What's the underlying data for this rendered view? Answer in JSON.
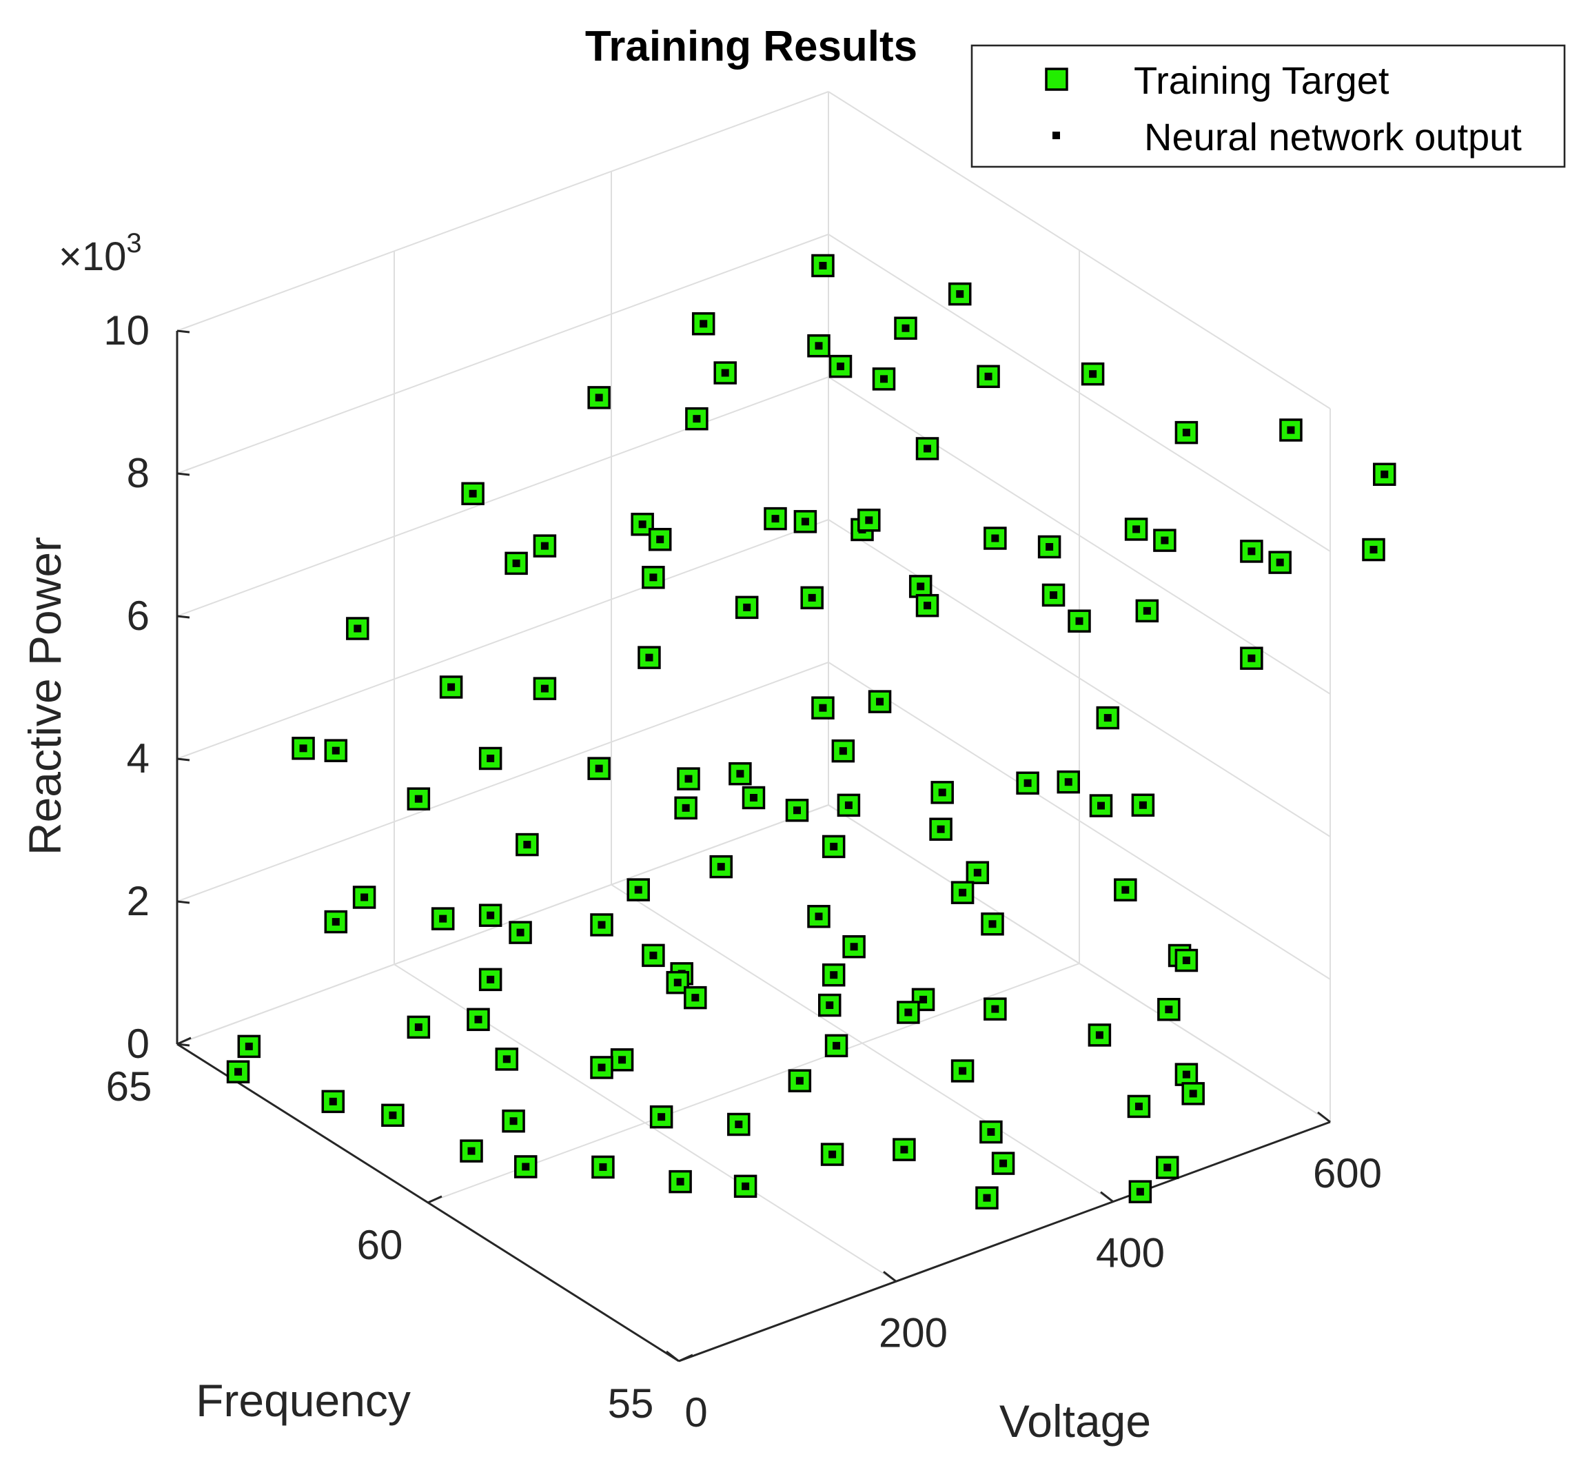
{
  "chart_data": {
    "type": "scatter3d",
    "title": "Training Results",
    "xlabel": "Voltage",
    "ylabel": "Frequency",
    "zlabel": "Reactive Power",
    "z_exponent_base": "×10",
    "z_exponent_power": "3",
    "xlim": [
      0,
      600
    ],
    "ylim": [
      55,
      65
    ],
    "zlim": [
      0,
      10
    ],
    "xticks": [
      "0",
      "200",
      "400",
      "600"
    ],
    "yticks": [
      "55",
      "60",
      "65"
    ],
    "zticks": [
      "0",
      "2",
      "4",
      "6",
      "8",
      "10"
    ],
    "grid": true,
    "legend_position": "top-right",
    "colors": {
      "target_fill": "#22ee00",
      "target_edge": "#000000",
      "nn_output": "#000000",
      "axis": "#262626",
      "grid": "#dedede"
    },
    "series": [
      {
        "name": "Training Target",
        "marker": "square",
        "points": [
          [
            10,
            64,
            0
          ],
          [
            20,
            64,
            0.3
          ],
          [
            5,
            62,
            0.5
          ],
          [
            40,
            60,
            0.5
          ],
          [
            90,
            60,
            0
          ],
          [
            115,
            59,
            0.3
          ],
          [
            125,
            61,
            0
          ],
          [
            130,
            63,
            0.4
          ],
          [
            165,
            62,
            0.2
          ],
          [
            200,
            58,
            0
          ],
          [
            215,
            60,
            0
          ],
          [
            225,
            61,
            0.3
          ],
          [
            240,
            59,
            0.2
          ],
          [
            280,
            58,
            0
          ],
          [
            300,
            57,
            0.4
          ],
          [
            330,
            56,
            0
          ],
          [
            345,
            56,
            0.4
          ],
          [
            380,
            57,
            0.2
          ],
          [
            400,
            58,
            0.5
          ],
          [
            425,
            55,
            0
          ],
          [
            450,
            55,
            0.2
          ],
          [
            470,
            56,
            0.5
          ],
          [
            520,
            56,
            0.4
          ],
          [
            560,
            57,
            0
          ],
          [
            590,
            58,
            0.3
          ],
          [
            185,
            63,
            0.2
          ],
          [
            60,
            62,
            0
          ],
          [
            160,
            60,
            1.0
          ],
          [
            250,
            58,
            1.2
          ],
          [
            330,
            59,
            0.8
          ],
          [
            410,
            59,
            1.0
          ],
          [
            300,
            62,
            0.9
          ],
          [
            420,
            61,
            0.4
          ],
          [
            370,
            60,
            0.7
          ],
          [
            270,
            64,
            0.5
          ],
          [
            140,
            58,
            0.4
          ],
          [
            100,
            64,
            1.6
          ],
          [
            150,
            62,
            1.4
          ],
          [
            230,
            60,
            1.8
          ],
          [
            280,
            61,
            1.2
          ],
          [
            350,
            58,
            1.6
          ],
          [
            430,
            58,
            1.2
          ],
          [
            480,
            57,
            1.0
          ],
          [
            520,
            60,
            1.0
          ],
          [
            560,
            57,
            1.6
          ],
          [
            600,
            58,
            1.0
          ],
          [
            60,
            61,
            3.2
          ],
          [
            160,
            60,
            3.0
          ],
          [
            240,
            61,
            2.6
          ],
          [
            300,
            58,
            2.8
          ],
          [
            400,
            58,
            3.0
          ],
          [
            460,
            59,
            2.5
          ],
          [
            520,
            61,
            2.4
          ],
          [
            590,
            60,
            2.6
          ],
          [
            230,
            63,
            2.4
          ],
          [
            330,
            62,
            2.8
          ],
          [
            150,
            62,
            2.3
          ],
          [
            420,
            61,
            2.2
          ],
          [
            80,
            63,
            2.5
          ],
          [
            360,
            60,
            2.0
          ],
          [
            480,
            62,
            2.0
          ],
          [
            550,
            58,
            2.2
          ],
          [
            270,
            60,
            3.2
          ],
          [
            380,
            62,
            3.0
          ],
          [
            200,
            59,
            2.2
          ],
          [
            620,
            60,
            2.1
          ],
          [
            70,
            64,
            4.2
          ],
          [
            150,
            62,
            4.5
          ],
          [
            240,
            60,
            4.6
          ],
          [
            300,
            60,
            4.0
          ],
          [
            380,
            58,
            4.0
          ],
          [
            460,
            58,
            4.2
          ],
          [
            520,
            57,
            4.0
          ],
          [
            580,
            59,
            4.0
          ],
          [
            600,
            60,
            4.8
          ],
          [
            100,
            64,
            4.0
          ],
          [
            410,
            61,
            4.2
          ],
          [
            340,
            60,
            3.6
          ],
          [
            250,
            62,
            3.8
          ],
          [
            130,
            63,
            3.6
          ],
          [
            120,
            64,
            5.6
          ],
          [
            200,
            62,
            5.2
          ],
          [
            250,
            61,
            5.8
          ],
          [
            300,
            62,
            6.2
          ],
          [
            340,
            61,
            6.0
          ],
          [
            400,
            61,
            5.8
          ],
          [
            460,
            60,
            5.8
          ],
          [
            530,
            59,
            6.0
          ],
          [
            570,
            58,
            6.0
          ],
          [
            620,
            57,
            5.5
          ],
          [
            370,
            59,
            5.4
          ],
          [
            160,
            63,
            5.0
          ],
          [
            220,
            63,
            6.4
          ],
          [
            440,
            62,
            6.2
          ],
          [
            290,
            58,
            5.6
          ],
          [
            500,
            61,
            5.4
          ],
          [
            180,
            63,
            7.6
          ],
          [
            260,
            61,
            7.4
          ],
          [
            320,
            60,
            7.8
          ],
          [
            360,
            59,
            8.0
          ],
          [
            430,
            58,
            7.8
          ],
          [
            480,
            58,
            7.4
          ],
          [
            540,
            57,
            7.6
          ],
          [
            600,
            56,
            7.4
          ],
          [
            640,
            55,
            7.8
          ],
          [
            200,
            62,
            7.2
          ],
          [
            290,
            62,
            7.0
          ],
          [
            400,
            60,
            7.2
          ],
          [
            460,
            60,
            8.0
          ],
          [
            560,
            58,
            7.2
          ],
          [
            620,
            57,
            7.0
          ],
          [
            340,
            62,
            8.2
          ],
          [
            250,
            62,
            9.0
          ],
          [
            320,
            61,
            9.4
          ],
          [
            380,
            60,
            9.6
          ],
          [
            420,
            60,
            9.2
          ],
          [
            470,
            59,
            9.4
          ],
          [
            520,
            58,
            9.6
          ],
          [
            560,
            57,
            9.0
          ],
          [
            610,
            56,
            9.2
          ],
          [
            650,
            55,
            8.8
          ],
          [
            300,
            61,
            10.2
          ],
          [
            360,
            60,
            10.0
          ],
          [
            410,
            61,
            10.4
          ],
          [
            440,
            60,
            9.8
          ],
          [
            490,
            60,
            10.0
          ]
        ]
      },
      {
        "name": "Neural network output",
        "marker": "point"
      }
    ]
  }
}
